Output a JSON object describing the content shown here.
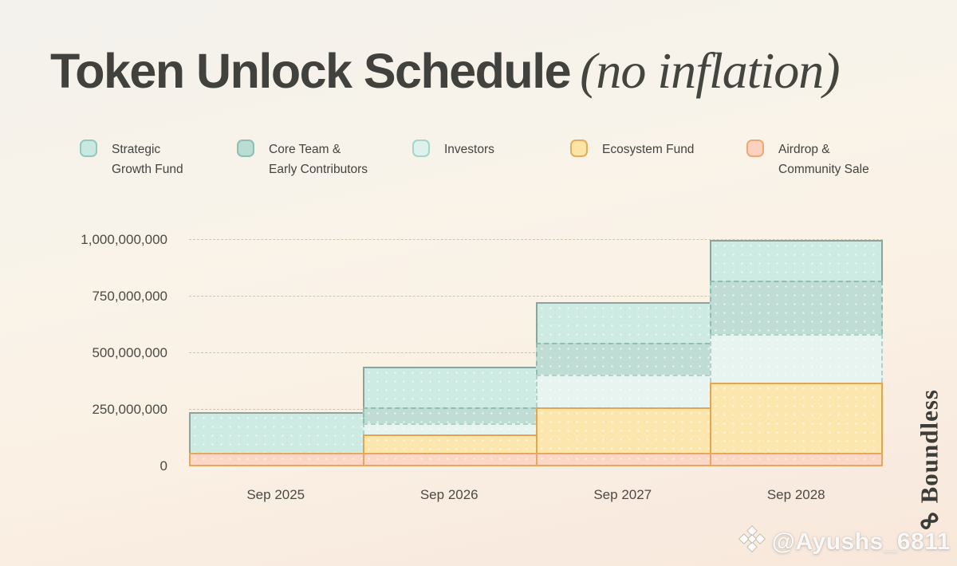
{
  "title": {
    "main": "Token Unlock Schedule",
    "suffix": "(no inflation)"
  },
  "brand": {
    "name": "Boundless",
    "icon": "boundless-knot-icon"
  },
  "watermark": {
    "icon": "binance-diamond-icon",
    "handle": "@Ayushs_6811"
  },
  "chart_data": {
    "type": "area",
    "variant": "stacked-step-cumulative",
    "title": "Token Unlock Schedule (no inflation)",
    "x": [
      "Sep 2025",
      "Sep 2026",
      "Sep 2027",
      "Sep 2028"
    ],
    "ylim": [
      0,
      1000000000
    ],
    "yticks": [
      {
        "label": "0",
        "value": 0
      },
      {
        "label": "250,000,000",
        "value": 250000000
      },
      {
        "label": "500,000,000",
        "value": 500000000
      },
      {
        "label": "750,000,000",
        "value": 750000000
      },
      {
        "label": "1,000,000,000",
        "value": 1000000000
      }
    ],
    "grid": "horizontal-dashed",
    "legend_position": "top",
    "stack_order_bottom_to_top": [
      "Airdrop & Community Sale",
      "Ecosystem Fund",
      "Investors",
      "Core Team & Early Contributors",
      "Strategic Growth Fund"
    ],
    "series": [
      {
        "name": "Strategic Growth Fund",
        "legend_label": "Strategic\nGrowth Fund",
        "cumulative_unlocked": [
          180000000,
          180000000,
          180000000,
          180000000
        ],
        "fill": "#cdeae3",
        "edge": "#8ba49f",
        "edge_style": "solid",
        "swatch_fill": "#c7e9e0",
        "swatch_edge": "#96c8bd"
      },
      {
        "name": "Core Team & Early Contributors",
        "legend_label": "Core Team &\nEarly Contributors",
        "cumulative_unlocked": [
          0,
          70000000,
          140000000,
          235000000
        ],
        "fill": "#bfddd5",
        "edge": "#93bcb0",
        "edge_style": "dashed",
        "swatch_fill": "#b9dcd3",
        "swatch_edge": "#8fbfb2"
      },
      {
        "name": "Investors",
        "legend_label": "Investors",
        "cumulative_unlocked": [
          0,
          50000000,
          145000000,
          215000000
        ],
        "fill": "#e8f4f0",
        "edge": "#aed3ca",
        "edge_style": "dashed",
        "swatch_fill": "#dff1ec",
        "swatch_edge": "#a6d5c9"
      },
      {
        "name": "Ecosystem Fund",
        "legend_label": "Ecosystem Fund",
        "cumulative_unlocked": [
          0,
          80000000,
          200000000,
          310000000
        ],
        "fill": "#fbe6ae",
        "edge": "#e3a64e",
        "edge_style": "solid",
        "swatch_fill": "#fce4a7",
        "swatch_edge": "#e2ae5e"
      },
      {
        "name": "Airdrop & Community Sale",
        "legend_label": "Airdrop &\nCommunity Sale",
        "cumulative_unlocked": [
          60000000,
          60000000,
          60000000,
          60000000
        ],
        "fill": "#fcd7c6",
        "edge": "#e7a75f",
        "edge_style": "solid",
        "swatch_fill": "#fcd2bf",
        "swatch_edge": "#eca878"
      }
    ],
    "totals_by_date": [
      240000000,
      440000000,
      725000000,
      1000000000
    ]
  }
}
